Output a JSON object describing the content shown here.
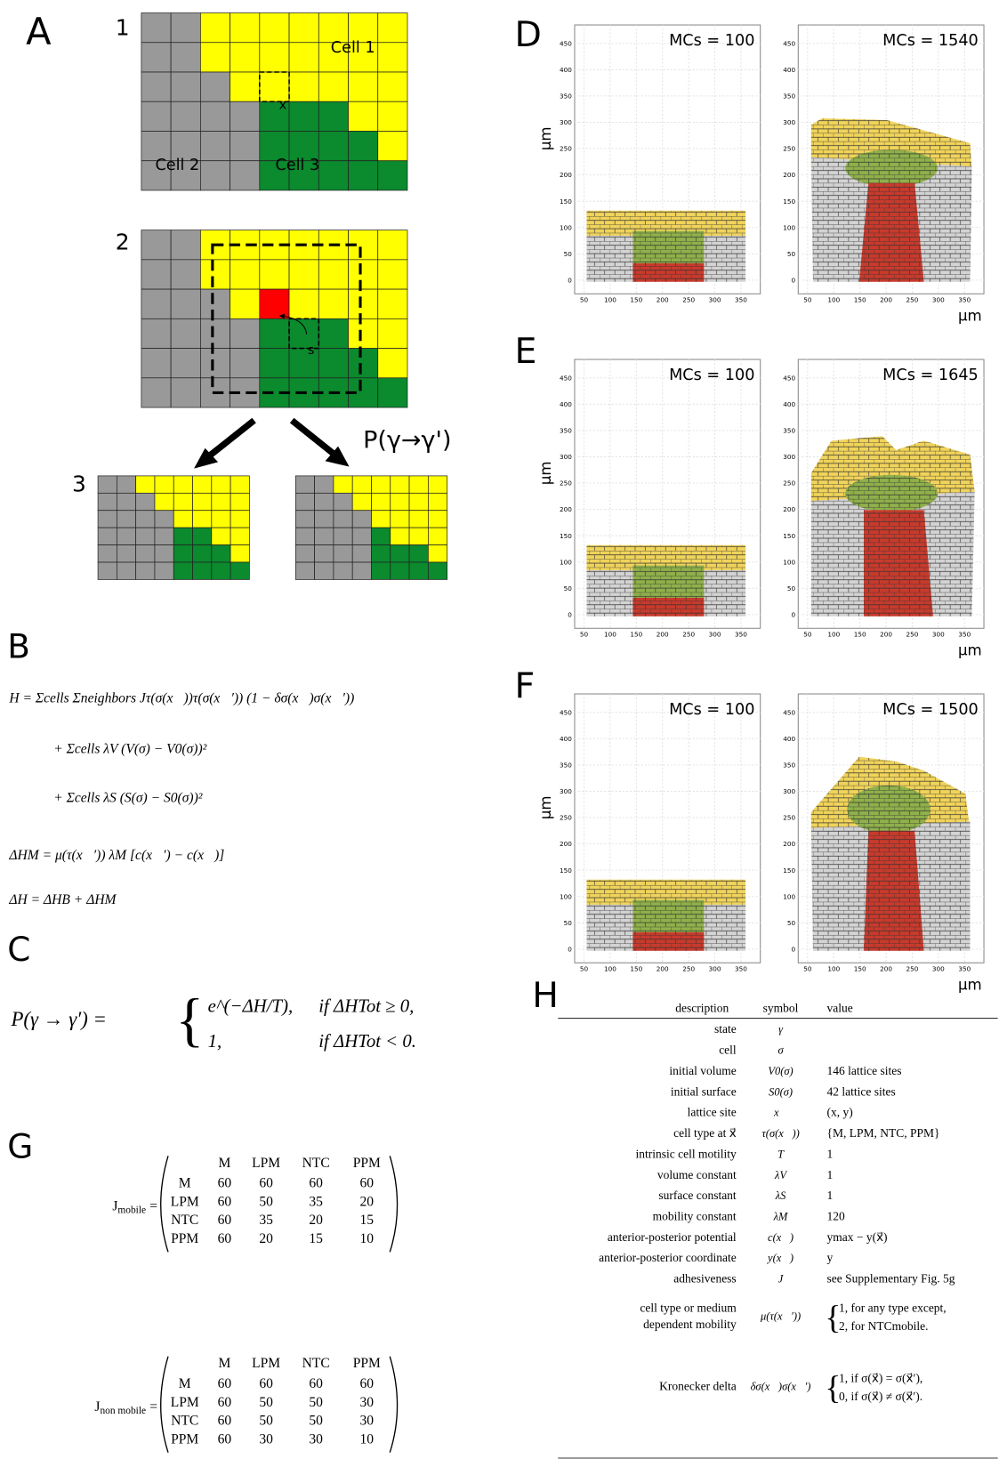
{
  "panels": {
    "A": {
      "label": "A",
      "steps": [
        "1",
        "2",
        "3"
      ],
      "cells": [
        "Cell 1",
        "Cell 2",
        "Cell 3"
      ],
      "target_site": "x",
      "source_site": "s",
      "probability": "P(γ→γ')"
    },
    "B": {
      "label": "B",
      "equations": [
        "H = Σcells Σneighbors Jτ(σ(x⃗))τ(σ(x⃗′)) (1 − δσ(x⃗)σ(x⃗′))",
        "+ Σcells λV (V(σ) − V0(σ))²",
        "+ Σcells λS (S(σ) − S0(σ))²",
        "ΔHM = μ(τ(x⃗′)) λM [c(x⃗′) − c(x⃗)]",
        "ΔH = ΔHB + ΔHM"
      ]
    },
    "C": {
      "label": "C",
      "lhs": "P(γ → γ′) =",
      "cases": [
        {
          "expr": "e^(−ΔH/T),",
          "condition": "if ΔHTot ≥ 0,"
        },
        {
          "expr": "1,",
          "condition": "if ΔHTot < 0."
        }
      ]
    },
    "simulations": {
      "axis": {
        "ylabel": "µm",
        "xlabel": "µm",
        "xlim": [
          32,
          387
        ],
        "xticks": [
          50,
          100,
          150,
          200,
          250,
          300,
          350
        ],
        "ylim": [
          -26,
          485
        ],
        "yticks": [
          0,
          50,
          100,
          150,
          200,
          250,
          300,
          350,
          400,
          450
        ]
      },
      "rows": [
        {
          "label": "D",
          "left_title": "MCs = 100",
          "right_title": "MCs = 1540"
        },
        {
          "label": "E",
          "left_title": "MCs = 100",
          "right_title": "MCs = 1645"
        },
        {
          "label": "F",
          "left_title": "MCs = 100",
          "right_title": "MCs = 1500"
        }
      ]
    },
    "G": {
      "label": "G",
      "matrices": [
        {
          "name": "J",
          "subscript": "mobile",
          "columns": [
            "M",
            "LPM",
            "NTC",
            "PPM"
          ],
          "rows": [
            {
              "label": "M",
              "values": [
                60,
                60,
                60,
                60
              ]
            },
            {
              "label": "LPM",
              "values": [
                60,
                50,
                35,
                20
              ]
            },
            {
              "label": "NTC",
              "values": [
                60,
                35,
                20,
                15
              ]
            },
            {
              "label": "PPM",
              "values": [
                60,
                20,
                15,
                10
              ]
            }
          ]
        },
        {
          "name": "J",
          "subscript": "non mobile",
          "columns": [
            "M",
            "LPM",
            "NTC",
            "PPM"
          ],
          "rows": [
            {
              "label": "M",
              "values": [
                60,
                60,
                60,
                60
              ]
            },
            {
              "label": "LPM",
              "values": [
                60,
                50,
                50,
                30
              ]
            },
            {
              "label": "NTC",
              "values": [
                60,
                50,
                50,
                30
              ]
            },
            {
              "label": "PPM",
              "values": [
                60,
                30,
                30,
                10
              ]
            }
          ]
        }
      ]
    },
    "H": {
      "label": "H",
      "header": [
        "description",
        "symbol",
        "value"
      ],
      "rows": [
        {
          "description": "state",
          "symbol": "γ"
        },
        {
          "description": "cell",
          "symbol": "σ"
        },
        {
          "description": "initial volume",
          "symbol": "V0(σ)",
          "value": "146 lattice sites"
        },
        {
          "description": "initial surface",
          "symbol": "S0(σ)",
          "value": "42 lattice sites"
        },
        {
          "description": "lattice site",
          "symbol": "x⃗",
          "value": "(x, y)"
        },
        {
          "description": "cell type at x⃗",
          "symbol": "τ(σ(x⃗))",
          "value": "{M, LPM, NTC, PPM}"
        },
        {
          "description": "intrinsic cell motility",
          "symbol": "T",
          "value": "1"
        },
        {
          "description": "volume constant",
          "symbol": "λV",
          "value": "1"
        },
        {
          "description": "surface constant",
          "symbol": "λS",
          "value": "1"
        },
        {
          "description": "mobility constant",
          "symbol": "λM",
          "value": "120"
        },
        {
          "description": "anterior-posterior potential",
          "symbol": "c(x⃗)",
          "value": "ymax − y(x⃗)"
        },
        {
          "description": "anterior-posterior coordinate",
          "symbol": "y(x⃗)",
          "value": "y"
        },
        {
          "description": "adhesiveness",
          "symbol": "J",
          "value": "see Supplementary Fig. 5g"
        },
        {
          "description": [
            "cell type or medium",
            "dependent mobility"
          ],
          "symbol": "μ(τ(x⃗′))",
          "value": [
            "1,   for any type except,",
            "2,   for NTCmobile."
          ]
        },
        {
          "description": "Kronecker delta",
          "symbol": "δσ(x⃗)σ(x⃗′)",
          "value": [
            "1,   if σ(x⃗) = σ(x⃗′),",
            "0,   if σ(x⃗) ≠ σ(x⃗′)."
          ]
        }
      ]
    }
  }
}
